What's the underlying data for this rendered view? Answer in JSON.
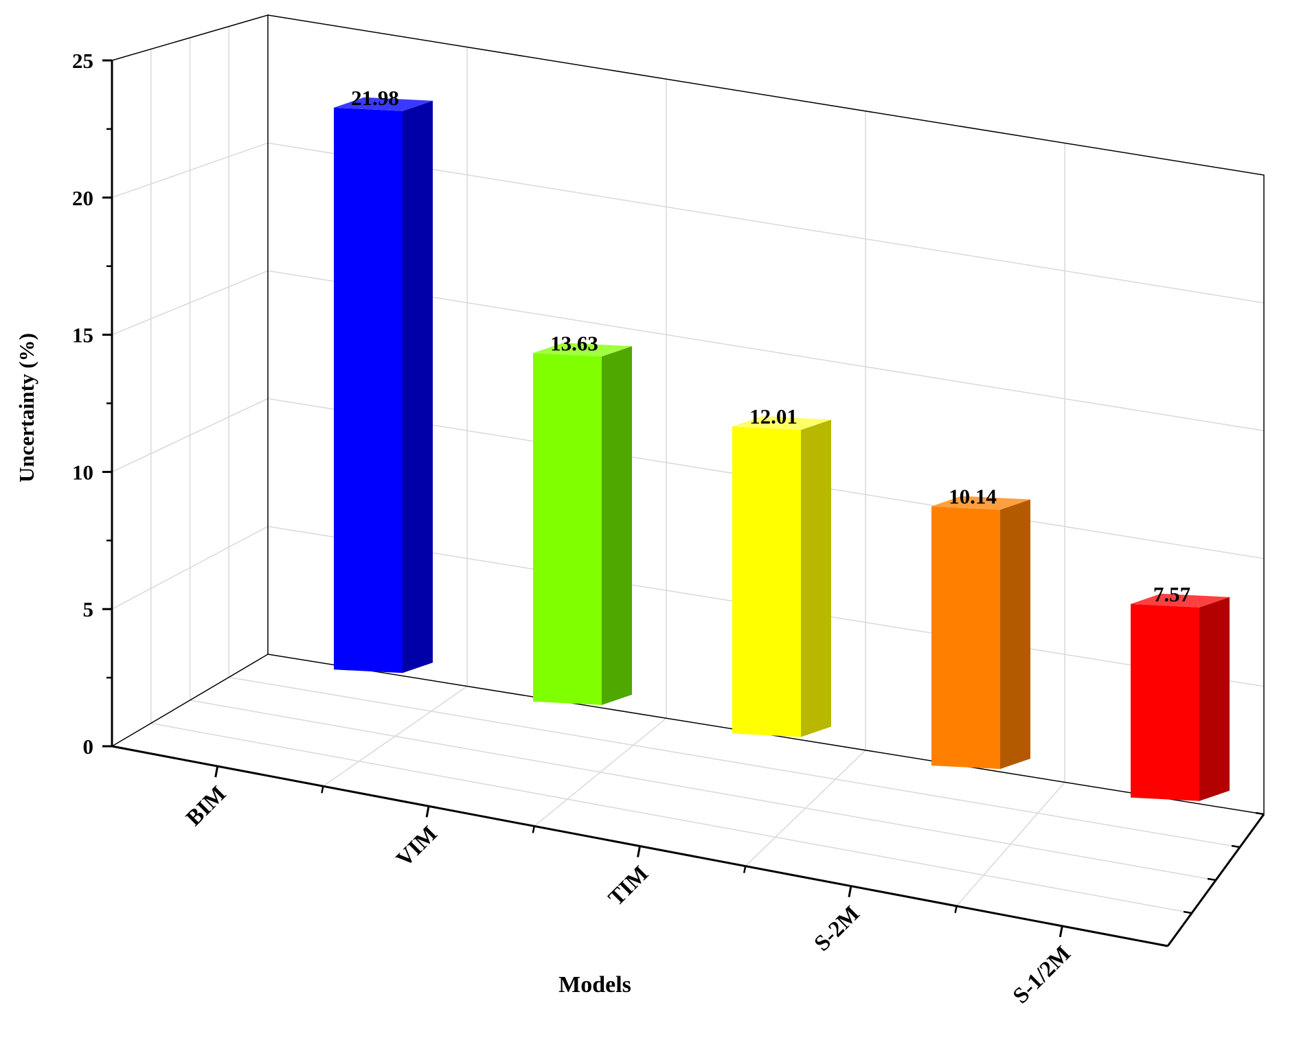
{
  "chart_data": {
    "type": "bar",
    "style": "3d",
    "categories": [
      "BIM",
      "VIM",
      "TIM",
      "S-2M",
      "S-1/2M"
    ],
    "values": [
      21.98,
      13.63,
      12.01,
      10.14,
      7.57
    ],
    "value_labels": [
      "21.98",
      "13.63",
      "12.01",
      "10.14",
      "7.57"
    ],
    "colors": [
      "#0000ff",
      "#80ff00",
      "#ffff00",
      "#ff8000",
      "#ff0000"
    ],
    "side_colors": [
      "#0000a8",
      "#4fa800",
      "#b8b800",
      "#b35a00",
      "#b30000"
    ],
    "top_colors": [
      "#3a3aff",
      "#a0ff40",
      "#ffff66",
      "#ffa040",
      "#ff4040"
    ],
    "xlabel": "Models",
    "ylabel": "Uncertainty (%)",
    "ylim": [
      0,
      25
    ],
    "yticks": [
      0,
      5,
      10,
      15,
      20,
      25
    ],
    "ytick_labels": [
      "0",
      "5",
      "10",
      "15",
      "20",
      "25"
    ],
    "grid": true
  }
}
